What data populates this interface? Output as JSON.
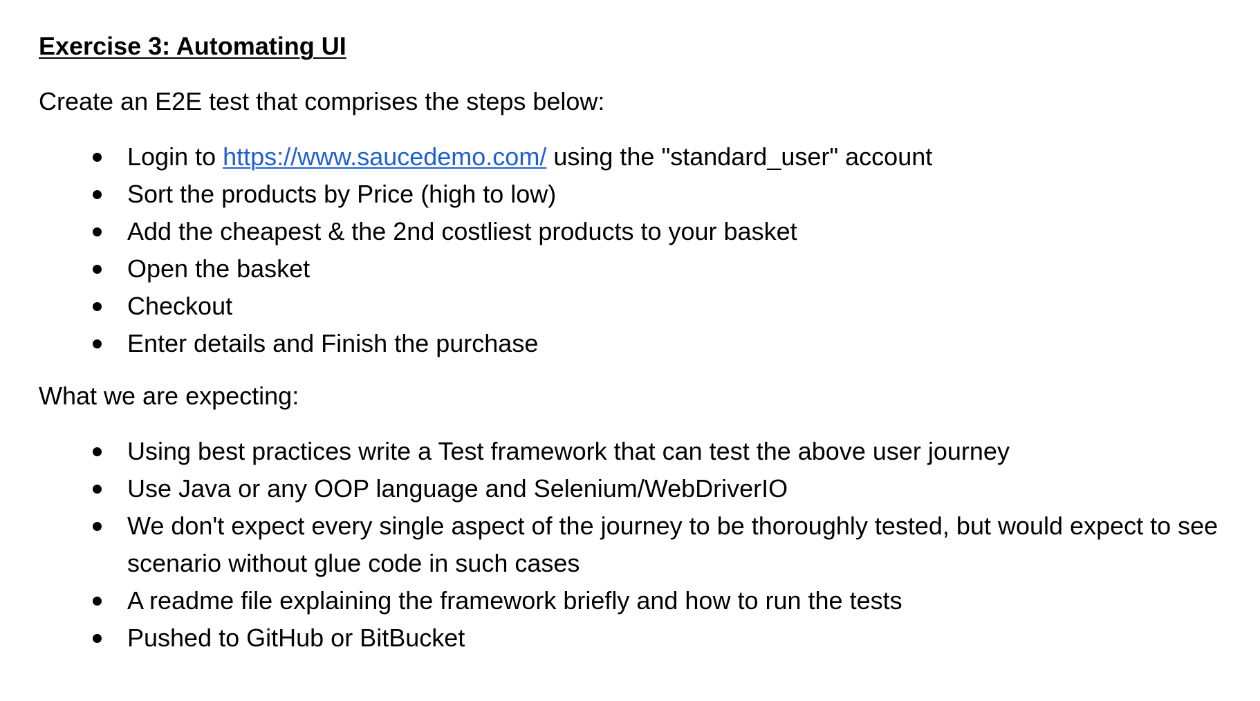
{
  "heading": "Exercise 3: Automating UI",
  "intro": "Create an E2E test that comprises the steps below:",
  "steps": {
    "login_prefix": "Login to ",
    "login_link": "https://www.saucedemo.com/",
    "login_suffix": " using the \"standard_user\" account",
    "sort": "Sort the products by Price (high to low)",
    "add": "Add the cheapest & the 2nd costliest products to your basket",
    "open": "Open the basket",
    "checkout": "Checkout",
    "finish": "Enter details and Finish the purchase"
  },
  "expecting_label": "What we are expecting:",
  "expectations": {
    "framework": "Using best practices write a Test framework that can test the above user journey",
    "language": "Use Java or any OOP language and Selenium/WebDriverIO",
    "scope": "We don't expect every single aspect of the journey to be thoroughly tested, but would expect to see scenario without glue code in such cases",
    "readme": "A readme file explaining the framework briefly and how to run the tests",
    "push": "Pushed to GitHub or BitBucket"
  },
  "colors": {
    "link": "#1f5fd1",
    "text": "#000000",
    "background": "#ffffff"
  }
}
